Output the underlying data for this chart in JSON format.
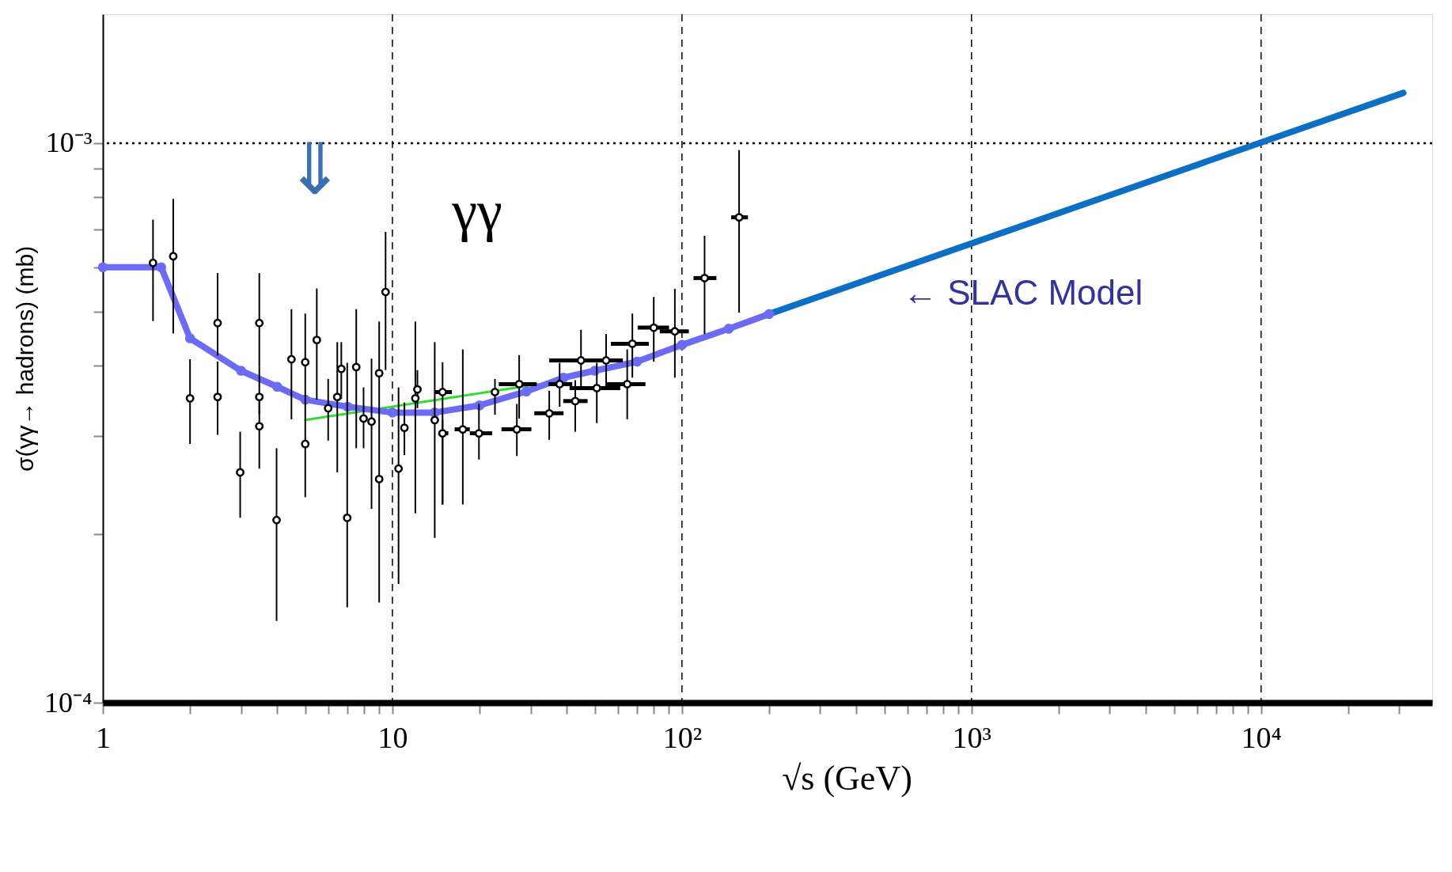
{
  "chart_data": {
    "type": "scatter",
    "xlabel": "√s (GeV)",
    "ylabel": "σ(γγ→ hadrons)  (mb)",
    "log": "xy",
    "grid": false,
    "xlim": [
      1,
      39000
    ],
    "ylim": [
      0.0001,
      0.0017
    ],
    "xticks": [
      1,
      {
        "value": 2,
        "label": null
      },
      {
        "value": 3,
        "label": null
      },
      {
        "value": 4,
        "label": null
      },
      {
        "value": 5,
        "label": null
      },
      {
        "value": 6,
        "label": null
      },
      {
        "value": 7,
        "label": null
      },
      {
        "value": 8,
        "label": null
      },
      {
        "value": 9,
        "label": null
      },
      10,
      {
        "value": 20,
        "label": null
      },
      {
        "value": 30,
        "label": null
      },
      {
        "value": 40,
        "label": null
      },
      {
        "value": 50,
        "label": null
      },
      {
        "value": 60,
        "label": null
      },
      {
        "value": 70,
        "label": null
      },
      {
        "value": 80,
        "label": null
      },
      {
        "value": 90,
        "label": null
      },
      {
        "value": 100,
        "label": "10²"
      },
      {
        "value": 200,
        "label": null
      },
      {
        "value": 300,
        "label": null
      },
      {
        "value": 400,
        "label": null
      },
      {
        "value": 500,
        "label": null
      },
      {
        "value": 600,
        "label": null
      },
      {
        "value": 700,
        "label": null
      },
      {
        "value": 800,
        "label": null
      },
      {
        "value": 900,
        "label": null
      },
      {
        "value": 1000,
        "label": "10³"
      },
      {
        "value": 2000,
        "label": null
      },
      {
        "value": 3000,
        "label": null
      },
      {
        "value": 4000,
        "label": null
      },
      {
        "value": 5000,
        "label": null
      },
      {
        "value": 6000,
        "label": null
      },
      {
        "value": 7000,
        "label": null
      },
      {
        "value": 8000,
        "label": null
      },
      {
        "value": 9000,
        "label": null
      },
      {
        "value": 10000,
        "label": "10⁴"
      },
      {
        "value": 20000,
        "label": null
      },
      {
        "value": 30000,
        "label": null
      }
    ],
    "yticks": [
      {
        "value": 0.0001,
        "label": "10⁻⁴"
      },
      {
        "value": 0.0002,
        "label": null
      },
      {
        "value": 0.0003,
        "label": null
      },
      {
        "value": 0.0004,
        "label": null
      },
      {
        "value": 0.0005,
        "label": null
      },
      {
        "value": 0.0006,
        "label": null
      },
      {
        "value": 0.0007,
        "label": null
      },
      {
        "value": 0.0008,
        "label": null
      },
      {
        "value": 0.0009,
        "label": null
      },
      {
        "value": 0.001,
        "label": "10⁻³"
      }
    ],
    "ref_lines": [
      {
        "axis": "y",
        "value": 0.001,
        "line_style": "dotted",
        "color": "#000000"
      },
      {
        "axis": "x",
        "value": 10,
        "line_style": "dashed",
        "color": "#000000"
      },
      {
        "axis": "x",
        "value": 100,
        "line_style": "dashed",
        "color": "#000000"
      },
      {
        "axis": "x",
        "value": 1000,
        "line_style": "dashed",
        "color": "#000000"
      },
      {
        "axis": "x",
        "value": 10000,
        "line_style": "dashed",
        "color": "#000000"
      }
    ],
    "annotations": [
      "γγ",
      "⇓",
      "← SLAC Model"
    ],
    "series": [
      {
        "type": "scatter",
        "color": "#000000",
        "marker": "circle",
        "x": [
          1.49,
          1.75,
          2.0,
          2.49,
          2.49,
          2.98,
          3.47,
          3.47,
          3.47,
          3.98,
          4.48,
          5.0,
          5.0,
          5.48,
          6.0,
          6.45,
          6.66,
          6.98,
          7.5,
          7.95,
          8.47,
          9.0,
          9.0,
          9.47,
          10.5,
          11.0,
          12.0,
          12.2,
          14.0,
          14.9,
          14.9,
          17.5,
          19.9,
          22.6,
          27.4,
          26.9,
          34.8,
          37.8,
          42.8,
          44.8,
          50.8,
          54.7,
          64.7,
          67.4,
          79.9,
          94.5,
          119.7,
          157.5
        ],
        "values": [
          0.000611,
          0.000628,
          0.00035,
          0.000477,
          0.000352,
          0.000258,
          0.000477,
          0.000352,
          0.000312,
          0.000212,
          0.000411,
          0.000406,
          0.00029,
          0.000445,
          0.000336,
          0.000352,
          0.000395,
          0.000214,
          0.000398,
          0.000322,
          0.000318,
          0.000388,
          0.000251,
          0.000542,
          0.000262,
          0.00031,
          0.00035,
          0.000363,
          0.00032,
          0.000359,
          0.000303,
          0.000308,
          0.000303,
          0.000359,
          0.000371,
          0.000308,
          0.000329,
          0.000371,
          0.000346,
          0.000409,
          0.000365,
          0.000409,
          0.000371,
          0.000438,
          0.000468,
          0.000461,
          0.000574,
          0.000737
        ],
        "errors": [
          [
            0.000481,
            0.00073
          ],
          [
            0.000457,
            0.000795
          ],
          [
            0.00029,
            0.000411
          ],
          [
            0.000417,
            0.000586
          ],
          [
            0.000301,
            0.000407
          ],
          [
            0.000214,
            0.000305
          ],
          [
            0.000398,
            0.000586
          ],
          [
            0.000328,
            0.000398
          ],
          [
            0.000262,
            0.000344
          ],
          [
            0.00014,
            0.000285
          ],
          [
            0.000321,
            0.000505
          ],
          [
            0.000348,
            0.000496
          ],
          [
            0.000233,
            0.000348
          ],
          [
            0.000348,
            0.00055
          ],
          [
            0.000294,
            0.000379
          ],
          [
            0.000258,
            0.000441
          ],
          [
            0.000349,
            0.000441
          ],
          [
            0.000148,
            0.000405
          ],
          [
            0.000285,
            0.000505
          ],
          [
            0.000285,
            0.000366
          ],
          [
            0.000222,
            0.000412
          ],
          [
            0.000336,
            0.00048
          ],
          [
            0.000151,
            0.000336
          ],
          [
            0.000393,
            0.000694
          ],
          [
            0.000163,
            0.000366
          ],
          [
            0.000277,
            0.000344
          ],
          [
            0.000218,
            0.00048
          ],
          [
            0.000336,
            0.000393
          ],
          [
            0.000197,
            0.000441
          ],
          [
            0.000226,
            0.000406
          ],
          [
            0.000226,
            0.00032
          ],
          [
            0.000226,
            0.000428
          ],
          [
            0.000272,
            0.000342
          ],
          [
            0.000327,
            0.000379
          ],
          [
            0.000322,
            0.000418
          ],
          [
            0.000276,
            0.000342
          ],
          [
            0.000295,
            0.000361
          ],
          [
            0.000338,
            0.000405
          ],
          [
            0.000305,
            0.000377
          ],
          [
            0.000367,
            0.000464
          ],
          [
            0.000316,
            0.000405
          ],
          [
            0.000367,
            0.000456
          ],
          [
            0.000321,
            0.000428
          ],
          [
            0.000381,
            0.000496
          ],
          [
            0.000407,
            0.000531
          ],
          [
            0.000381,
            0.000549
          ],
          [
            0.000456,
            0.000683
          ],
          [
            0.000498,
            0.000972
          ]
        ],
        "xerrors": [
          null,
          null,
          null,
          null,
          null,
          null,
          null,
          null,
          null,
          null,
          null,
          null,
          null,
          null,
          null,
          null,
          null,
          null,
          null,
          null,
          null,
          null,
          null,
          null,
          null,
          null,
          null,
          null,
          null,
          [
            14.0,
            16.05
          ],
          [
            14.4,
            15.6
          ],
          [
            16.4,
            18.5
          ],
          [
            18.5,
            22.1
          ],
          null,
          [
            23.3,
            31.5
          ],
          [
            23.8,
            30.2
          ],
          [
            30.9,
            39.0
          ],
          [
            34.6,
            41.8
          ],
          [
            38.9,
            47.2
          ],
          [
            34.8,
            59.7
          ],
          [
            40.9,
            61.2
          ],
          [
            48.4,
            62.5
          ],
          [
            54.9,
            74.8
          ],
          [
            56.8,
            76.8
          ],
          [
            70.3,
            90.2
          ],
          [
            83.8,
            105.6
          ],
          [
            109.6,
            131.5
          ],
          [
            147.9,
            169.0
          ]
        ]
      },
      {
        "type": "line",
        "color": "#33dd33",
        "x": [
          5,
          32
        ],
        "values": [
          0.00032,
          0.000371
        ]
      },
      {
        "type": "line",
        "color": "#6b6bf5",
        "marker": "circle",
        "x": [
          1,
          1.59,
          2.0,
          3.0,
          4.0,
          5.0,
          7.0,
          10,
          14,
          20,
          29,
          39,
          50,
          70,
          100,
          145,
          200
        ],
        "values": [
          0.0006,
          0.0006,
          0.000448,
          0.000392,
          0.000367,
          0.000348,
          0.000338,
          0.00033,
          0.00033,
          0.00034,
          0.00036,
          0.000381,
          0.000392,
          0.000407,
          0.000436,
          0.000466,
          0.000495
        ]
      },
      {
        "type": "line",
        "color": "#0b6fc4",
        "x": [
          200,
          31000
        ],
        "values": [
          0.000495,
          0.00123
        ]
      }
    ]
  }
}
